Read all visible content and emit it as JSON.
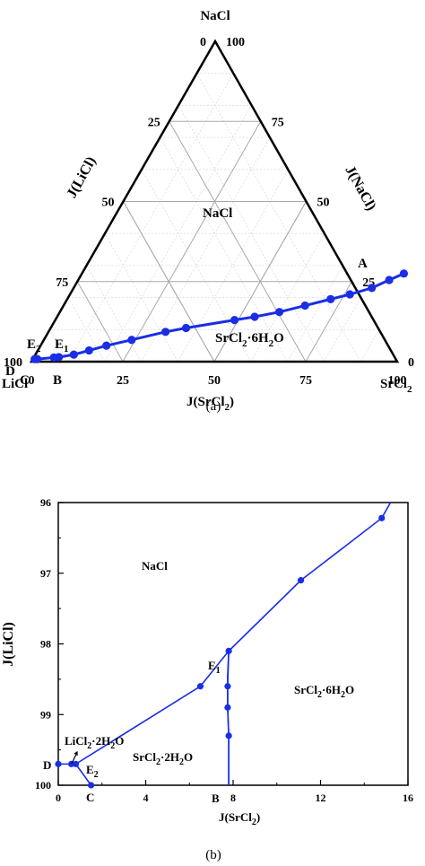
{
  "colors": {
    "series": "#1a2ee6",
    "grid": "#c8c8c8",
    "axis": "#000000"
  },
  "panel_a": {
    "caption": "(a)",
    "vertex_top": "NaCl",
    "vertex_left": "LiCl",
    "vertex_right": "SrCl",
    "vertex_right_sub": "2",
    "axis_left_title": "J(LiCl)",
    "axis_right_title": "J(NaCl)",
    "axis_bottom_title_main": "J(SrCl",
    "axis_bottom_title_sub": "2",
    "axis_bottom_title_end": ")",
    "region_nacl": "NaCl",
    "region_srcl": "SrCl",
    "region_srcl_rest1": "·6H",
    "region_srcl_rest2": "O",
    "sub2": "2",
    "point_A": "A",
    "point_B": "B",
    "point_C": "C",
    "point_D": "D",
    "point_E1": "E",
    "point_E2": "E",
    "sub1": "1",
    "left_ticks": [
      "0",
      "25",
      "50",
      "75",
      "100"
    ],
    "right_ticks": [
      "100",
      "75",
      "50",
      "25",
      "0"
    ],
    "bottom_ticks": [
      "0",
      "25",
      "50",
      "75",
      "100"
    ]
  },
  "panel_b": {
    "caption": "(b)",
    "xlabel_main": "J(SrCl",
    "xlabel_sub": "2",
    "xlabel_end": ")",
    "ylabel": "J(LiCl)",
    "x_ticks": [
      "0",
      "4",
      "8",
      "12",
      "16"
    ],
    "y_ticks": [
      "96",
      "97",
      "98",
      "99",
      "100"
    ],
    "region_nacl": "NaCl",
    "region_srcl6": "SrCl",
    "region_srcl6_rest1": "·6H",
    "region_srcl6_rest2": "O",
    "region_licl2": "LiCl",
    "region_licl2_rest1": "·2H",
    "region_licl2_rest2": "O",
    "region_srcl2": "SrCl",
    "region_srcl2_rest1": "·2H",
    "region_srcl2_rest2": "O",
    "sub2": "2",
    "point_B": "B",
    "point_C": "C",
    "point_D": "D",
    "point_E1": "E",
    "point_E2": "E",
    "sub1": "1"
  },
  "chart_data": [
    {
      "type": "scatter",
      "subtype": "ternary",
      "axes": [
        "J(LiCl)",
        "J(NaCl)",
        "J(SrCl2)"
      ],
      "ranges": [
        [
          0,
          100
        ],
        [
          0,
          100
        ],
        [
          0,
          100
        ]
      ],
      "grid": true,
      "series": [
        {
          "points_srcl2_nacl": [
            [
              0.5,
              0.8
            ],
            [
              1.2,
              0.8
            ],
            [
              5.5,
              1.3
            ],
            [
              6.8,
              1.4
            ],
            [
              10.5,
              2.2
            ],
            [
              14.0,
              3.5
            ],
            [
              18.0,
              5.0
            ],
            [
              24.0,
              6.8
            ],
            [
              32.0,
              9.3
            ],
            [
              37.0,
              10.5
            ],
            [
              49.0,
              13.0
            ],
            [
              54.0,
              14.0
            ],
            [
              60.0,
              15.5
            ],
            [
              66.0,
              17.5
            ],
            [
              72.0,
              19.5
            ],
            [
              76.5,
              21.0
            ],
            [
              81.5,
              23.0
            ],
            [
              85.0,
              25.5
            ],
            [
              88.0,
              27.5
            ]
          ]
        }
      ]
    },
    {
      "type": "line",
      "xlabel": "J(SrCl2)",
      "ylabel": "J(LiCl)",
      "xlim": [
        0,
        16
      ],
      "ylim": [
        100,
        96
      ],
      "x_ticks": [
        0,
        4,
        8,
        12,
        16
      ],
      "y_ticks": [
        96,
        97,
        98,
        99,
        100
      ],
      "series": [
        {
          "points": [
            [
              7.8,
              100.0
            ],
            [
              7.8,
              99.3
            ],
            [
              7.75,
              98.9
            ],
            [
              7.75,
              98.45
            ],
            [
              7.8,
              98.1
            ],
            [
              11.1,
              97.1
            ],
            [
              14.8,
              96.22
            ],
            [
              15.2,
              96.0
            ]
          ]
        },
        {
          "points": [
            [
              0.0,
              99.7
            ],
            [
              0.6,
              99.7
            ],
            [
              0.8,
              99.7
            ],
            [
              6.5,
              98.6
            ],
            [
              7.8,
              98.1
            ]
          ]
        },
        {
          "points": [
            [
              7.8,
              98.1
            ],
            [
              7.75,
              98.6
            ],
            [
              7.75,
              98.9
            ],
            [
              7.8,
              99.3
            ],
            [
              7.8,
              100.0
            ]
          ]
        },
        {
          "points": [
            [
              0.8,
              99.7
            ],
            [
              1.5,
              100.0
            ]
          ]
        }
      ],
      "markers": [
        [
          0.0,
          99.7
        ],
        [
          0.6,
          99.7
        ],
        [
          0.8,
          99.7
        ],
        [
          6.5,
          98.6
        ],
        [
          7.8,
          98.1
        ],
        [
          7.75,
          98.6
        ],
        [
          7.75,
          98.9
        ],
        [
          7.8,
          99.3
        ],
        [
          11.1,
          97.1
        ],
        [
          14.8,
          96.22
        ],
        [
          1.5,
          100.0
        ]
      ]
    }
  ]
}
